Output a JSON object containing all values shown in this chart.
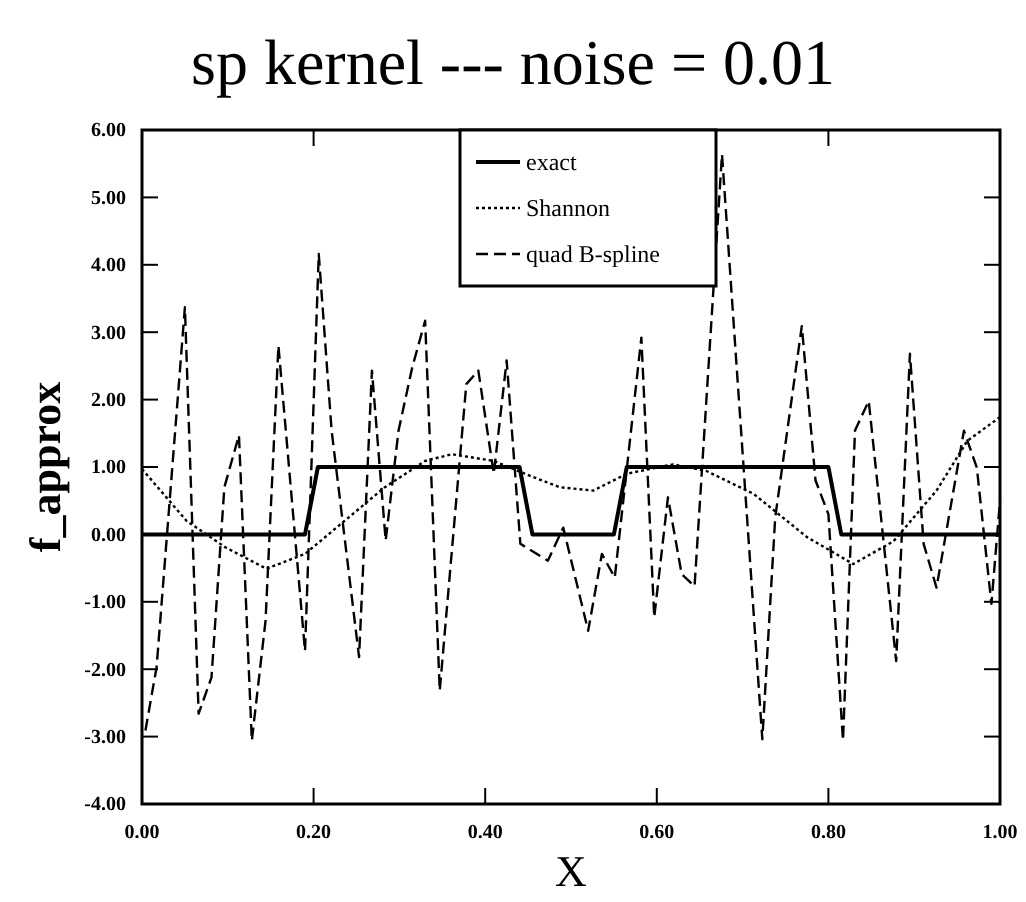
{
  "chart_data": {
    "type": "line",
    "title": "sp kernel --- noise = 0.01",
    "xlabel": "X",
    "ylabel": "f_approx",
    "xlim": [
      0,
      1
    ],
    "ylim": [
      -4,
      6
    ],
    "xticks": [
      {
        "value": 0,
        "label": "0.00"
      },
      {
        "value": 0.2,
        "label": "0.20"
      },
      {
        "value": 0.4,
        "label": "0.40"
      },
      {
        "value": 0.6,
        "label": "0.60"
      },
      {
        "value": 0.8,
        "label": "0.80"
      },
      {
        "value": 1,
        "label": "1.00"
      }
    ],
    "yticks": [
      {
        "value": -4,
        "label": "-4.00"
      },
      {
        "value": -3,
        "label": "-3.00"
      },
      {
        "value": -2,
        "label": "-2.00"
      },
      {
        "value": -1,
        "label": "-1.00"
      },
      {
        "value": 0,
        "label": "0.00"
      },
      {
        "value": 1,
        "label": "1.00"
      },
      {
        "value": 2,
        "label": "2.00"
      },
      {
        "value": 3,
        "label": "3.00"
      },
      {
        "value": 4,
        "label": "4.00"
      },
      {
        "value": 5,
        "label": "5.00"
      },
      {
        "value": 6,
        "label": "6.00"
      }
    ],
    "grid": false,
    "legend": "top",
    "marker": "none",
    "series": [
      {
        "name": "exact",
        "color": "#000000",
        "line_style": "solid",
        "x": [
          0,
          0.19,
          0.205,
          0.44,
          0.455,
          0.55,
          0.565,
          0.8,
          0.815,
          1
        ],
        "values": [
          0,
          0,
          1,
          1,
          0,
          0,
          1,
          1,
          0,
          0
        ]
      },
      {
        "name": "Shannon",
        "color": "#000000",
        "line_style": "dotted",
        "x": [
          0,
          0.052,
          0.097,
          0.145,
          0.19,
          0.236,
          0.283,
          0.33,
          0.361,
          0.41,
          0.456,
          0.487,
          0.526,
          0.565,
          0.619,
          0.658,
          0.713,
          0.775,
          0.829,
          0.876,
          0.926,
          0.962,
          1
        ],
        "values": [
          0.97,
          0.2,
          -0.19,
          -0.51,
          -0.29,
          0.2,
          0.7,
          1.09,
          1.19,
          1.09,
          0.85,
          0.7,
          0.65,
          0.9,
          1.04,
          0.94,
          0.6,
          -0.04,
          -0.44,
          -0.1,
          0.65,
          1.39,
          1.74
        ]
      },
      {
        "name": "quad B-spline",
        "color": "#000000",
        "line_style": "dashed",
        "x": [
          0.004,
          0.017,
          0.05,
          0.066,
          0.081,
          0.096,
          0.113,
          0.128,
          0.144,
          0.159,
          0.19,
          0.206,
          0.221,
          0.253,
          0.268,
          0.284,
          0.299,
          0.315,
          0.33,
          0.347,
          0.378,
          0.392,
          0.41,
          0.425,
          0.441,
          0.473,
          0.491,
          0.52,
          0.536,
          0.551,
          0.582,
          0.597,
          0.613,
          0.629,
          0.644,
          0.676,
          0.723,
          0.738,
          0.769,
          0.785,
          0.8,
          0.817,
          0.831,
          0.847,
          0.879,
          0.895,
          0.911,
          0.926,
          0.958,
          0.973,
          0.99,
          1
        ],
        "values": [
          -2.91,
          -1.97,
          3.37,
          -2.66,
          -2.12,
          0.7,
          1.47,
          -3.06,
          -1.28,
          2.8,
          -1.73,
          4.16,
          1.54,
          -1.82,
          2.43,
          -0.09,
          1.54,
          2.48,
          3.17,
          -2.32,
          2.23,
          2.43,
          0.9,
          2.58,
          -0.14,
          -0.39,
          0.1,
          -1.43,
          -0.29,
          -0.64,
          2.92,
          -1.23,
          0.55,
          -0.59,
          -0.77,
          5.64,
          -3.04,
          0.25,
          3.09,
          0.8,
          0.3,
          -3.06,
          1.54,
          1.98,
          -1.88,
          2.68,
          -0.14,
          -0.79,
          1.54,
          0.99,
          -1.03,
          0.5
        ]
      }
    ]
  }
}
